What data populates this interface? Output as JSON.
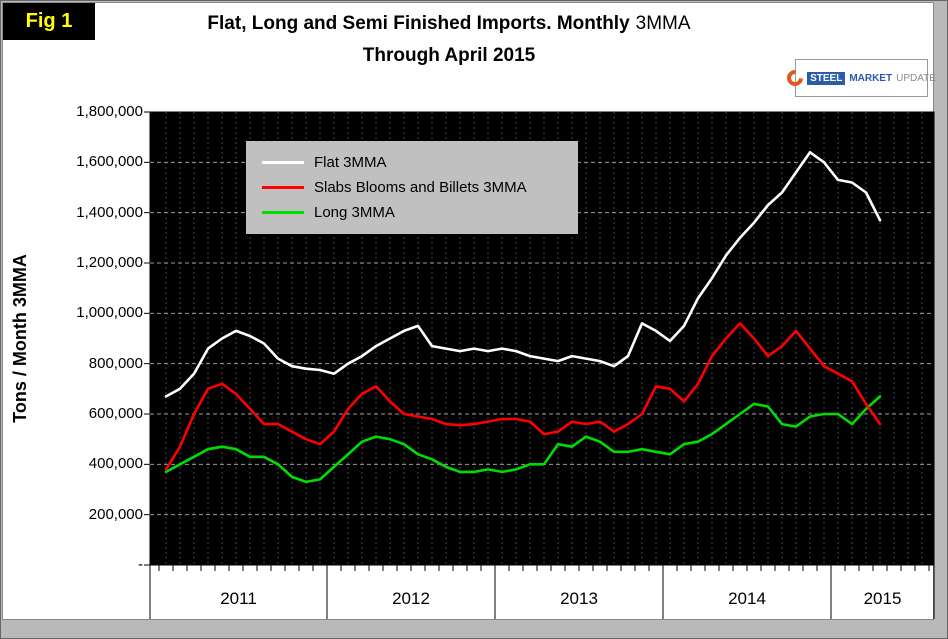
{
  "figure_label": "Fig 1",
  "title": {
    "line1_bold": "Flat, Long and Semi Finished Imports. Monthly",
    "line1_regular": "3MMA",
    "line2": "Through April 2015"
  },
  "logo": {
    "text_steel": "STEEL",
    "text_market": "MARKET",
    "text_update": "UPDATE"
  },
  "y_axis_title": "Tons / Month 3MMA",
  "colors": {
    "plot_background": "#000000",
    "figure_label_bg": "#000000",
    "figure_label_text": "#ffff00",
    "legend_bg": "#c0c0c0",
    "flat_line": "#ffffff",
    "slabs_line": "#ff0000",
    "long_line": "#00dd00",
    "logo_orange": "#e2571d",
    "logo_blue": "#2a5ca8"
  },
  "chart_data": {
    "type": "line",
    "title": "Flat, Long and Semi Finished Imports. Monthly 3MMA Through April 2015",
    "xlabel": "",
    "ylabel": "Tons / Month 3MMA",
    "ylim": [
      0,
      1800000
    ],
    "ytick_interval": 200000,
    "ytick_labels": [
      "1,800,000",
      "1,600,000",
      "1,400,000",
      "1,200,000",
      "1,000,000",
      "800,000",
      "600,000",
      "400,000",
      "200,000",
      "-"
    ],
    "year_labels": [
      "2011",
      "2012",
      "2013",
      "2014",
      "2015"
    ],
    "grid": "dashed horizontal gridlines every 200,000 and dashed vertical monthly gridlines on black plot background",
    "legend_position": "top-left inside plot, gray box",
    "x_note": "Monthly 3-month moving average, Jan 2011 through Apr 2015 (52 points)",
    "x": [
      "2011-01",
      "2011-02",
      "2011-03",
      "2011-04",
      "2011-05",
      "2011-06",
      "2011-07",
      "2011-08",
      "2011-09",
      "2011-10",
      "2011-11",
      "2011-12",
      "2012-01",
      "2012-02",
      "2012-03",
      "2012-04",
      "2012-05",
      "2012-06",
      "2012-07",
      "2012-08",
      "2012-09",
      "2012-10",
      "2012-11",
      "2012-12",
      "2013-01",
      "2013-02",
      "2013-03",
      "2013-04",
      "2013-05",
      "2013-06",
      "2013-07",
      "2013-08",
      "2013-09",
      "2013-10",
      "2013-11",
      "2013-12",
      "2014-01",
      "2014-02",
      "2014-03",
      "2014-04",
      "2014-05",
      "2014-06",
      "2014-07",
      "2014-08",
      "2014-09",
      "2014-10",
      "2014-11",
      "2014-12",
      "2015-01",
      "2015-02",
      "2015-03",
      "2015-04"
    ],
    "series": [
      {
        "name": "Flat 3MMA",
        "color": "#ffffff",
        "values": [
          670000,
          700000,
          760000,
          860000,
          900000,
          930000,
          910000,
          880000,
          820000,
          790000,
          780000,
          775000,
          760000,
          800000,
          830000,
          870000,
          900000,
          930000,
          950000,
          870000,
          860000,
          850000,
          860000,
          850000,
          860000,
          850000,
          830000,
          820000,
          810000,
          830000,
          820000,
          810000,
          790000,
          830000,
          960000,
          930000,
          890000,
          950000,
          1060000,
          1140000,
          1230000,
          1300000,
          1360000,
          1430000,
          1480000,
          1560000,
          1640000,
          1600000,
          1530000,
          1520000,
          1480000,
          1370000
        ]
      },
      {
        "name": "Slabs Blooms and Billets 3MMA",
        "color": "#ff0000",
        "values": [
          380000,
          470000,
          600000,
          700000,
          720000,
          680000,
          620000,
          560000,
          560000,
          530000,
          500000,
          480000,
          530000,
          620000,
          680000,
          710000,
          650000,
          600000,
          590000,
          580000,
          560000,
          555000,
          560000,
          570000,
          580000,
          580000,
          570000,
          520000,
          530000,
          570000,
          560000,
          570000,
          530000,
          560000,
          600000,
          710000,
          700000,
          650000,
          720000,
          830000,
          900000,
          960000,
          900000,
          830000,
          870000,
          930000,
          860000,
          790000,
          760000,
          730000,
          640000,
          560000
        ]
      },
      {
        "name": "Long 3MMA",
        "color": "#00dd00",
        "values": [
          370000,
          400000,
          430000,
          460000,
          470000,
          460000,
          430000,
          430000,
          400000,
          350000,
          330000,
          340000,
          390000,
          440000,
          490000,
          510000,
          500000,
          480000,
          440000,
          420000,
          390000,
          370000,
          370000,
          380000,
          370000,
          380000,
          400000,
          400000,
          480000,
          470000,
          510000,
          490000,
          450000,
          450000,
          460000,
          450000,
          440000,
          480000,
          490000,
          520000,
          560000,
          600000,
          640000,
          630000,
          560000,
          550000,
          590000,
          600000,
          600000,
          560000,
          620000,
          670000
        ]
      }
    ]
  }
}
